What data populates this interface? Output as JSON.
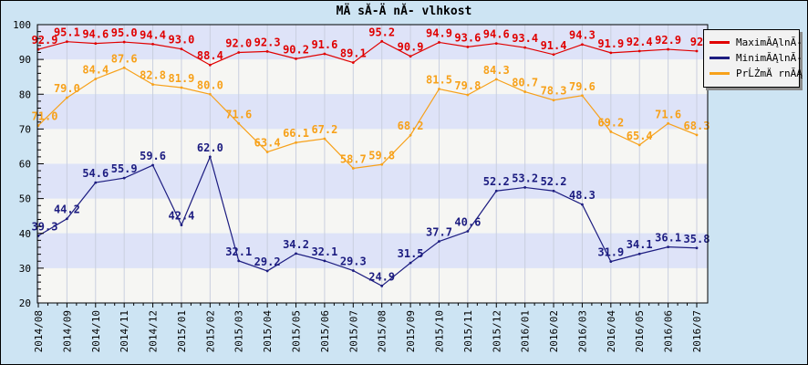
{
  "chart_data": {
    "type": "line",
    "title": "MÄ sĂ-Ä nĂ- vlhkost",
    "categories": [
      "2014/08",
      "2014/09",
      "2014/10",
      "2014/11",
      "2014/12",
      "2015/01",
      "2015/02",
      "2015/03",
      "2015/04",
      "2015/05",
      "2015/06",
      "2015/07",
      "2015/08",
      "2015/09",
      "2015/10",
      "2015/11",
      "2015/12",
      "2016/01",
      "2016/02",
      "2016/03",
      "2016/04",
      "2016/05",
      "2016/06",
      "2016/07"
    ],
    "ylim": [
      20,
      100
    ],
    "y_tick_labels": [
      "100",
      "90",
      "80",
      "70",
      "60",
      "50",
      "40",
      "30",
      "20"
    ],
    "y_major_step": 10,
    "y_minor_step": 2,
    "grid": "vertical-monthly, alternating horizontal bands",
    "legend_position": "top-right-overlay",
    "series": [
      {
        "name": "MaximĂĄlnĂ-",
        "color": "#e00000",
        "values": [
          92.9,
          95.1,
          94.6,
          95.0,
          94.4,
          93.0,
          88.4,
          92.0,
          92.3,
          90.2,
          91.6,
          89.1,
          95.2,
          90.9,
          94.9,
          93.6,
          94.6,
          93.4,
          91.4,
          94.3,
          91.9,
          92.4,
          92.9,
          92.4
        ],
        "labels": [
          "92.9",
          "95.1",
          "94.6",
          "95.0",
          "94.4",
          "93.0",
          "88.4",
          "92.0",
          "92.3",
          "90.2",
          "91.6",
          "89.1",
          "95.2",
          "90.9",
          "94.9",
          "93.6",
          "94.6",
          "93.4",
          "91.4",
          "94.3",
          "91.9",
          "92.4",
          "92.9",
          "92"
        ]
      },
      {
        "name": "MinimĂĄlnĂ-",
        "color": "#1c1c80",
        "values": [
          39.3,
          44.2,
          54.6,
          55.9,
          59.6,
          42.4,
          62.0,
          32.1,
          29.2,
          34.2,
          32.1,
          29.3,
          24.9,
          31.5,
          37.7,
          40.6,
          52.2,
          53.2,
          52.2,
          48.3,
          31.9,
          34.1,
          36.1,
          35.8
        ]
      },
      {
        "name": "PrĹŻmÄ rnĂĄ",
        "color": "#f7a11a",
        "values": [
          71.0,
          79.0,
          84.4,
          87.6,
          82.8,
          81.9,
          80.0,
          71.6,
          63.4,
          66.1,
          67.2,
          58.7,
          59.8,
          68.2,
          81.5,
          79.8,
          84.3,
          80.7,
          78.3,
          79.6,
          69.2,
          65.4,
          71.6,
          68.3
        ]
      }
    ],
    "colors": {
      "outer_background": "#cde4f3",
      "band_a": "#dee3f8",
      "band_b": "#f6f6f3",
      "gridline": "#c9cfdf",
      "frame": "#000000"
    }
  }
}
